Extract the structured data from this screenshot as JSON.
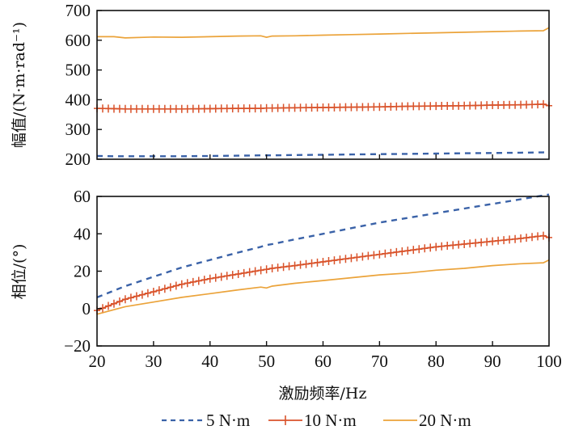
{
  "colors": {
    "s5": "#3a62a8",
    "s10": "#d9532b",
    "s20": "#eba33a",
    "axis": "#111111"
  },
  "chart_data": [
    {
      "type": "line",
      "ylabel": "幅值/(N·m·rad⁻¹)",
      "xlim": [
        20,
        100
      ],
      "ylim": [
        200,
        700
      ],
      "yticks": [
        "200",
        "300",
        "400",
        "500",
        "600",
        "700"
      ],
      "yticks_values": [
        200,
        300,
        400,
        500,
        600,
        700
      ],
      "xticks_values": [
        20,
        30,
        40,
        50,
        60,
        70,
        80,
        90,
        100
      ],
      "x": [
        20,
        23,
        25,
        30,
        35,
        40,
        45,
        49,
        50,
        51,
        55,
        60,
        65,
        70,
        75,
        80,
        85,
        90,
        95,
        99,
        100
      ],
      "series": [
        {
          "name": "5 N·m",
          "style": "dashed",
          "values": [
            211,
            210,
            210,
            210,
            210,
            211,
            212,
            213,
            213,
            213,
            214,
            215,
            216,
            217,
            218,
            219,
            220,
            221,
            222,
            223,
            224
          ]
        },
        {
          "name": "10 N·m",
          "style": "plus-marker",
          "values": [
            371,
            370,
            369,
            369,
            369,
            370,
            371,
            371,
            372,
            372,
            373,
            374,
            375,
            376,
            378,
            379,
            380,
            382,
            383,
            385,
            380
          ]
        },
        {
          "name": "20 N·m",
          "style": "solid",
          "values": [
            612,
            612,
            608,
            611,
            610,
            612,
            614,
            615,
            610,
            614,
            615,
            617,
            619,
            621,
            623,
            625,
            627,
            629,
            631,
            632,
            642
          ]
        }
      ]
    },
    {
      "type": "line",
      "ylabel": "相位/(°)",
      "xlabel": "激励频率/Hz",
      "xlim": [
        20,
        100
      ],
      "ylim": [
        -20,
        60
      ],
      "yticks": [
        "−20",
        "0",
        "20",
        "40",
        "60"
      ],
      "yticks_values": [
        -20,
        0,
        20,
        40,
        60
      ],
      "xticks": [
        "20",
        "30",
        "40",
        "50",
        "60",
        "70",
        "80",
        "90",
        "100"
      ],
      "xticks_values": [
        20,
        30,
        40,
        50,
        60,
        70,
        80,
        90,
        100
      ],
      "x": [
        20,
        25,
        30,
        35,
        40,
        45,
        49,
        50,
        51,
        55,
        60,
        65,
        70,
        75,
        80,
        85,
        90,
        95,
        99,
        100
      ],
      "series": [
        {
          "name": "5 N·m",
          "style": "dashed",
          "values": [
            6,
            12,
            17,
            22,
            26,
            30,
            33,
            34,
            34.5,
            37,
            40,
            43,
            46,
            48.5,
            51,
            53.5,
            56,
            58.5,
            60.5,
            61
          ]
        },
        {
          "name": "10 N·m",
          "style": "plus-marker",
          "values": [
            -1,
            5,
            9,
            13,
            16,
            18.5,
            20.5,
            21,
            21.5,
            23,
            25,
            27,
            29,
            31,
            33,
            34.5,
            36,
            37.5,
            39,
            38
          ]
        },
        {
          "name": "20 N·m",
          "style": "solid",
          "values": [
            -3,
            1,
            3.5,
            6,
            8,
            10,
            11.5,
            11,
            12,
            13.5,
            15,
            16.5,
            18,
            19,
            20.5,
            21.5,
            23,
            24,
            24.5,
            26
          ]
        }
      ]
    }
  ],
  "legend": {
    "items": [
      "5 N·m",
      "10 N·m",
      "20 N·m"
    ]
  }
}
